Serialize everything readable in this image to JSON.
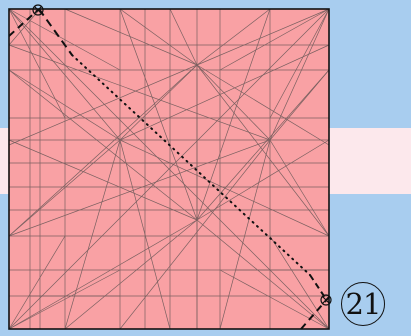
{
  "diagram": {
    "step_number": "21",
    "paper_color": "#f9a1a4",
    "crease_color": "#7a6060",
    "band_color": "#fce8ec",
    "background_color": "#a8cdef",
    "fold_lines": [
      "valley-fold-dashed",
      "mountain-fold-dotted"
    ],
    "markers": [
      "reference-point-marker-top",
      "reference-point-marker-bottom"
    ]
  }
}
